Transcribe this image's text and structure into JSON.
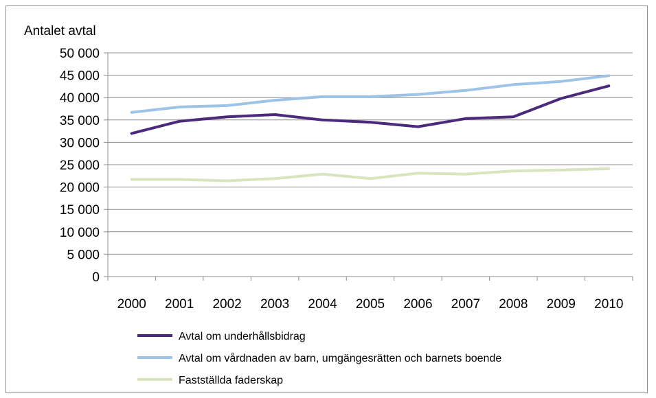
{
  "chart_data": {
    "type": "line",
    "ylabel": "Antalet avtal",
    "xlabel": "",
    "title": "",
    "x": [
      "2000",
      "2001",
      "2002",
      "2003",
      "2004",
      "2005",
      "2006",
      "2007",
      "2008",
      "2009",
      "2010"
    ],
    "ylim": [
      0,
      50000
    ],
    "yticks": [
      0,
      5000,
      10000,
      15000,
      20000,
      25000,
      30000,
      35000,
      40000,
      45000,
      50000
    ],
    "ytick_labels": [
      "0",
      "5 000",
      "10 000",
      "15 000",
      "20 000",
      "25 000",
      "30 000",
      "35 000",
      "40 000",
      "45 000",
      "50 000"
    ],
    "grid": true,
    "legend_position": "bottom",
    "series": [
      {
        "name": "Avtal om underhållsbidrag",
        "color": "#4b2a7b",
        "values": [
          32000,
          34700,
          35700,
          36200,
          35000,
          34500,
          33500,
          35300,
          35700,
          39800,
          42600
        ]
      },
      {
        "name": "Avtal om vårdnaden av barn, umgängesrätten och barnets boende",
        "color": "#9dc3e6",
        "values": [
          36700,
          37900,
          38200,
          39400,
          40200,
          40200,
          40700,
          41600,
          42900,
          43600,
          44900
        ]
      },
      {
        "name": "Fastställda faderskap",
        "color": "#d7e4bd",
        "values": [
          21700,
          21700,
          21400,
          21900,
          22900,
          21900,
          23100,
          22900,
          23600,
          23800,
          24100
        ]
      }
    ]
  }
}
